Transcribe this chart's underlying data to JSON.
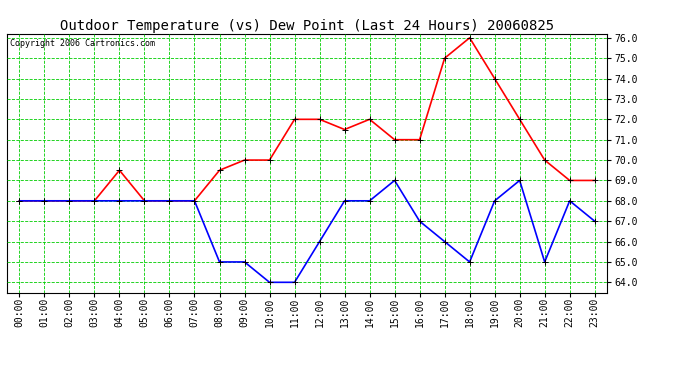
{
  "title": "Outdoor Temperature (vs) Dew Point (Last 24 Hours) 20060825",
  "copyright_text": "Copyright 2006 Cartronics.com",
  "hours": [
    "00:00",
    "01:00",
    "02:00",
    "03:00",
    "04:00",
    "05:00",
    "06:00",
    "07:00",
    "08:00",
    "09:00",
    "10:00",
    "11:00",
    "12:00",
    "13:00",
    "14:00",
    "15:00",
    "16:00",
    "17:00",
    "18:00",
    "19:00",
    "20:00",
    "21:00",
    "22:00",
    "23:00"
  ],
  "temperature": [
    68.0,
    68.0,
    68.0,
    68.0,
    69.5,
    68.0,
    68.0,
    68.0,
    69.5,
    70.0,
    70.0,
    72.0,
    72.0,
    71.5,
    72.0,
    71.0,
    71.0,
    75.0,
    76.0,
    74.0,
    72.0,
    70.0,
    69.0,
    69.0
  ],
  "dew_point": [
    68.0,
    68.0,
    68.0,
    68.0,
    68.0,
    68.0,
    68.0,
    68.0,
    65.0,
    65.0,
    64.0,
    64.0,
    66.0,
    68.0,
    68.0,
    69.0,
    67.0,
    66.0,
    65.0,
    68.0,
    69.0,
    65.0,
    68.0,
    67.0
  ],
  "temp_color": "#ff0000",
  "dew_color": "#0000ff",
  "bg_color": "#ffffff",
  "plot_bg_color": "#ffffff",
  "grid_color": "#00cc00",
  "ylim_min": 64.0,
  "ylim_max": 76.0,
  "ytick_step": 1.0,
  "title_fontsize": 10,
  "tick_fontsize": 7,
  "copyright_fontsize": 6,
  "marker": "+",
  "markersize": 5,
  "linewidth": 1.2
}
